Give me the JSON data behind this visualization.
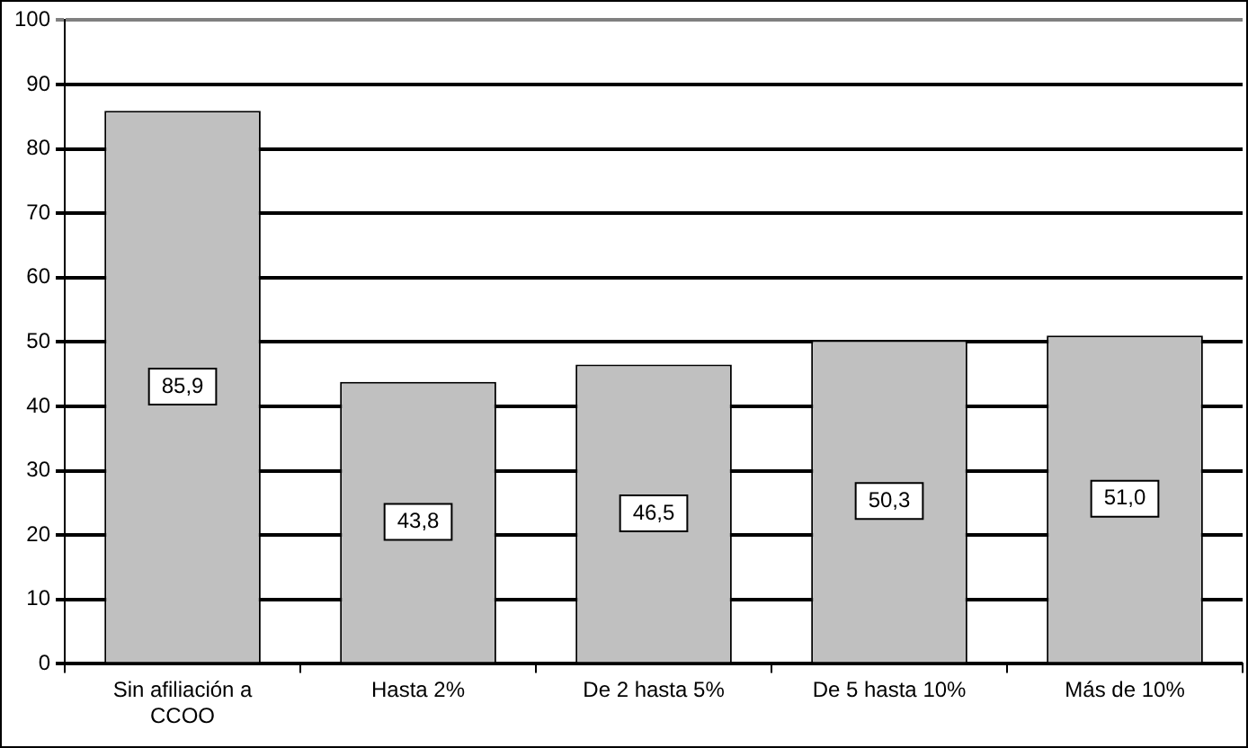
{
  "chart_data": {
    "type": "bar",
    "categories": [
      "Sin afiliación a CCOO",
      "Hasta 2%",
      "De 2 hasta 5%",
      "De 5 hasta 10%",
      "Más de 10%"
    ],
    "values": [
      85.9,
      43.8,
      46.5,
      50.3,
      51.0
    ],
    "value_labels": [
      "85,9",
      "43,8",
      "46,5",
      "50,3",
      "51,0"
    ],
    "color": "#c0c0c0",
    "ylim": [
      0,
      100
    ],
    "yticks": [
      0,
      10,
      20,
      30,
      40,
      50,
      60,
      70,
      80,
      90,
      100
    ],
    "grid": "y"
  }
}
